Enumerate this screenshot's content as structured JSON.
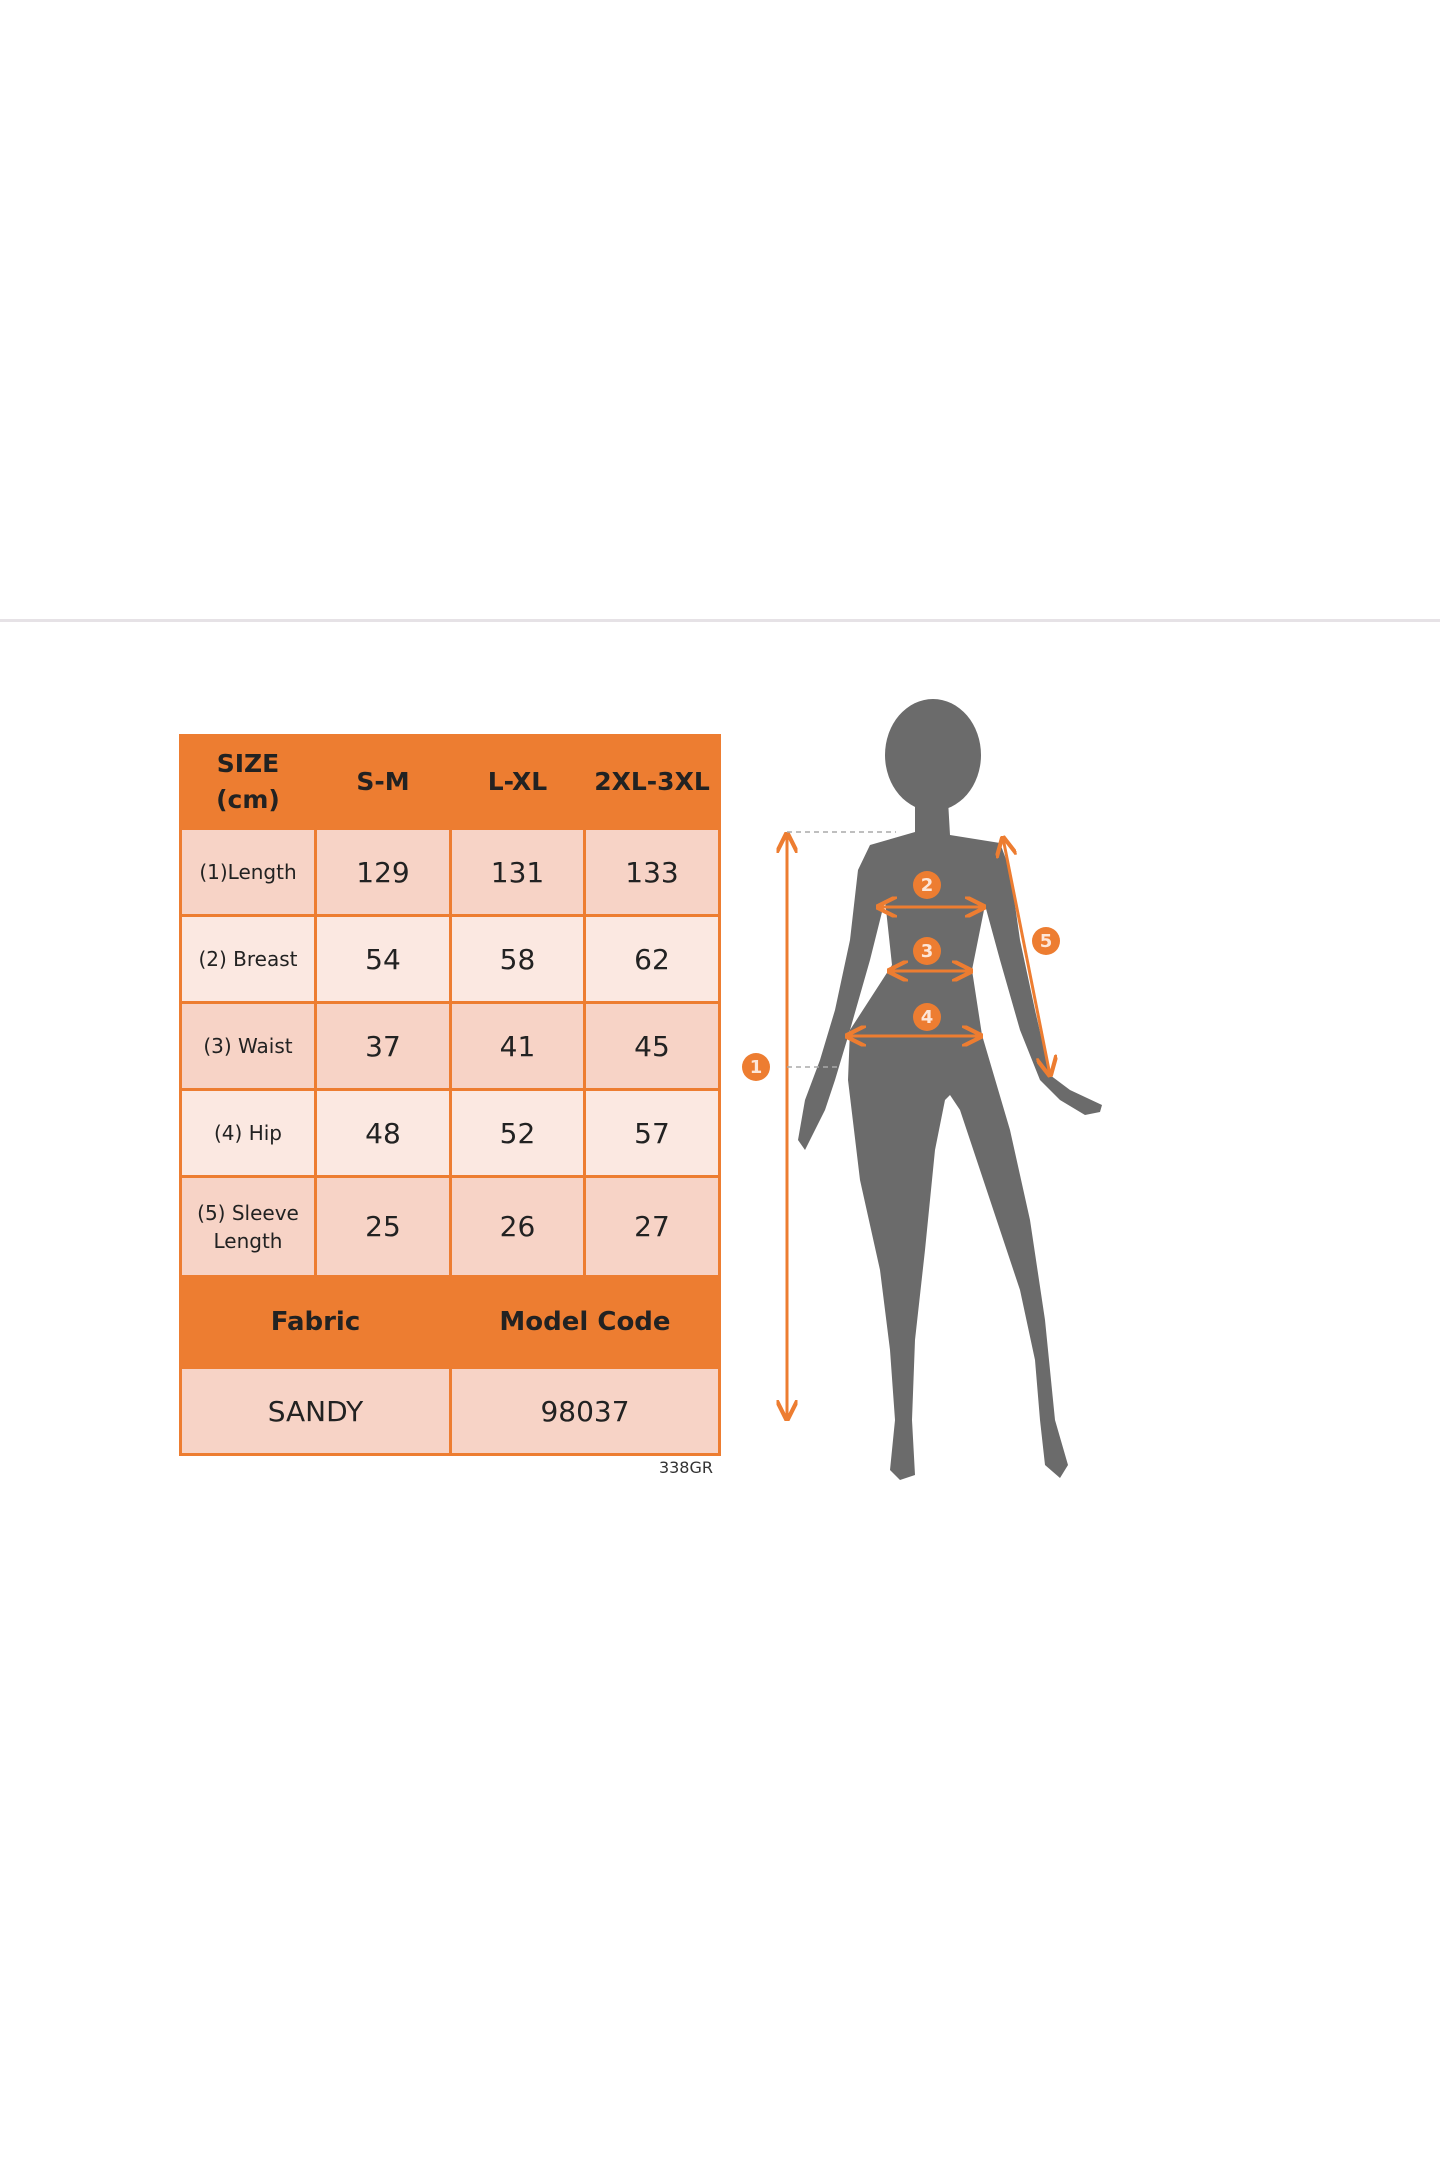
{
  "size_table": {
    "header": {
      "size_label_line1": "SIZE",
      "size_label_line2": "(cm)",
      "columns": [
        "S-M",
        "L-XL",
        "2XL-3XL"
      ]
    },
    "rows": [
      {
        "label": "(1)Length",
        "values": [
          "129",
          "131",
          "133"
        ]
      },
      {
        "label": "(2) Breast",
        "values": [
          "54",
          "58",
          "62"
        ]
      },
      {
        "label": "(3) Waist",
        "values": [
          "37",
          "41",
          "45"
        ]
      },
      {
        "label": "(4) Hip",
        "values": [
          "48",
          "52",
          "57"
        ]
      },
      {
        "label_line1": "(5) Sleeve",
        "label_line2": "Length",
        "values": [
          "25",
          "26",
          "27"
        ]
      }
    ],
    "fabric_header": "Fabric",
    "model_code_header": "Model Code",
    "fabric": "SANDY",
    "model_code": "98037"
  },
  "image_code": "338GR",
  "figure": {
    "markers": [
      "1",
      "2",
      "3",
      "4",
      "5"
    ],
    "accent_color": "#ED7D31",
    "silhouette_color": "#6b6b6b"
  }
}
